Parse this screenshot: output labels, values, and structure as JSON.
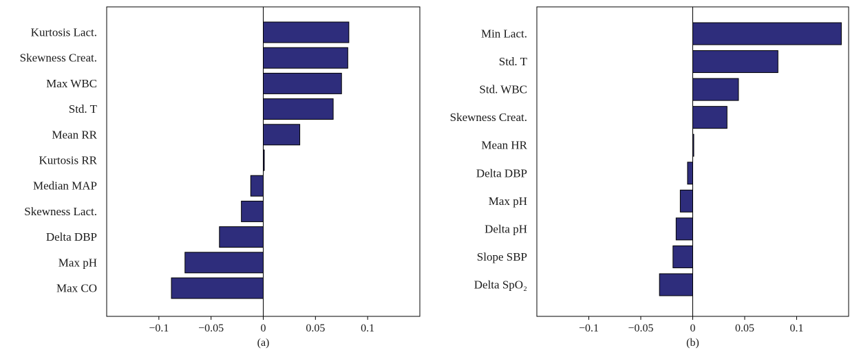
{
  "colors": {
    "bar_fill": "#2e2d7c",
    "axis": "#000000",
    "text": "#1a1a1a"
  },
  "chart_data": [
    {
      "type": "bar",
      "orientation": "horizontal",
      "panel_label": "(a)",
      "categories": [
        "Kurtosis Lact.",
        "Skewness Creat.",
        "Max WBC",
        "Std. T",
        "Mean RR",
        "Kurtosis RR",
        "Median MAP",
        "Skewness Lact.",
        "Delta DBP",
        "Max pH",
        "Max CO"
      ],
      "values": [
        0.082,
        0.081,
        0.075,
        0.067,
        0.035,
        0.001,
        -0.012,
        -0.021,
        -0.042,
        -0.075,
        -0.088
      ],
      "xlim": [
        -0.15,
        0.15
      ],
      "xticks": [
        -0.1,
        -0.05,
        0,
        0.05,
        0.1
      ],
      "xtick_labels": [
        "−0.1",
        "−0.05",
        "0",
        "0.05",
        "0.1"
      ],
      "grid": false,
      "legend": "none"
    },
    {
      "type": "bar",
      "orientation": "horizontal",
      "panel_label": "(b)",
      "categories": [
        "Min Lact.",
        "Std. T",
        "Std. WBC",
        "Skewness Creat.",
        "Mean HR",
        "Delta DBP",
        "Max pH",
        "Delta pH",
        "Slope SBP",
        "Delta SpO₂"
      ],
      "values": [
        0.143,
        0.082,
        0.044,
        0.033,
        0.001,
        -0.005,
        -0.012,
        -0.016,
        -0.019,
        -0.032
      ],
      "xlim": [
        -0.15,
        0.15
      ],
      "xticks": [
        -0.1,
        -0.05,
        0,
        0.05,
        0.1
      ],
      "xtick_labels": [
        "−0.1",
        "−0.05",
        "0",
        "0.05",
        "0.1"
      ],
      "grid": false,
      "legend": "none"
    }
  ]
}
